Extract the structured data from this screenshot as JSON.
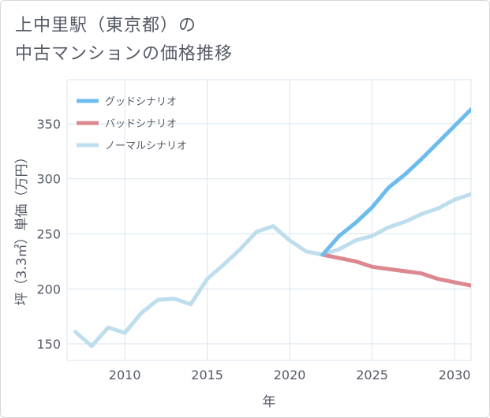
{
  "page": {
    "title_line1": "上中里駅（東京都）の",
    "title_line2": "中古マンションの価格推移"
  },
  "colors": {
    "good": "#6cbcee",
    "bad": "#dd8891",
    "normal": "#bfdeed",
    "grid": "#d8e6f0",
    "axis": "#555b66"
  },
  "chart_data": {
    "type": "line",
    "title": "上中里駅（東京都）の中古マンションの価格推移",
    "xlabel": "年",
    "ylabel": "坪（3.3㎡）単価（万円）",
    "xlim": [
      2006.5,
      2031
    ],
    "ylim": [
      135,
      390
    ],
    "xticks": [
      2010,
      2015,
      2020,
      2025,
      2030
    ],
    "yticks": [
      150,
      200,
      250,
      300,
      350
    ],
    "grid": true,
    "legend_position": "top-left",
    "series": [
      {
        "key": "normal",
        "name": "ノーマルシナリオ",
        "x": [
          2007,
          2008,
          2009,
          2010,
          2011,
          2012,
          2013,
          2014,
          2015,
          2016,
          2017,
          2018,
          2019,
          2020,
          2021,
          2022,
          2023,
          2024,
          2025,
          2026,
          2027,
          2028,
          2029,
          2030,
          2031
        ],
        "values": [
          161,
          148,
          165,
          160,
          178,
          190,
          191,
          186,
          209,
          222,
          236,
          252,
          257,
          244,
          234,
          231,
          236,
          244,
          248,
          256,
          261,
          268,
          273,
          281,
          286
        ]
      },
      {
        "key": "bad",
        "name": "バッドシナリオ",
        "x": [
          2022,
          2023,
          2024,
          2025,
          2026,
          2027,
          2028,
          2029,
          2030,
          2031
        ],
        "values": [
          231,
          228,
          225,
          220,
          218,
          216,
          214,
          209,
          206,
          203
        ]
      },
      {
        "key": "good",
        "name": "グッドシナリオ",
        "x": [
          2022,
          2023,
          2024,
          2025,
          2026,
          2027,
          2028,
          2029,
          2030,
          2031
        ],
        "values": [
          231,
          248,
          260,
          274,
          292,
          304,
          318,
          333,
          348,
          363
        ]
      }
    ],
    "legend_order": [
      "good",
      "bad",
      "normal"
    ]
  }
}
